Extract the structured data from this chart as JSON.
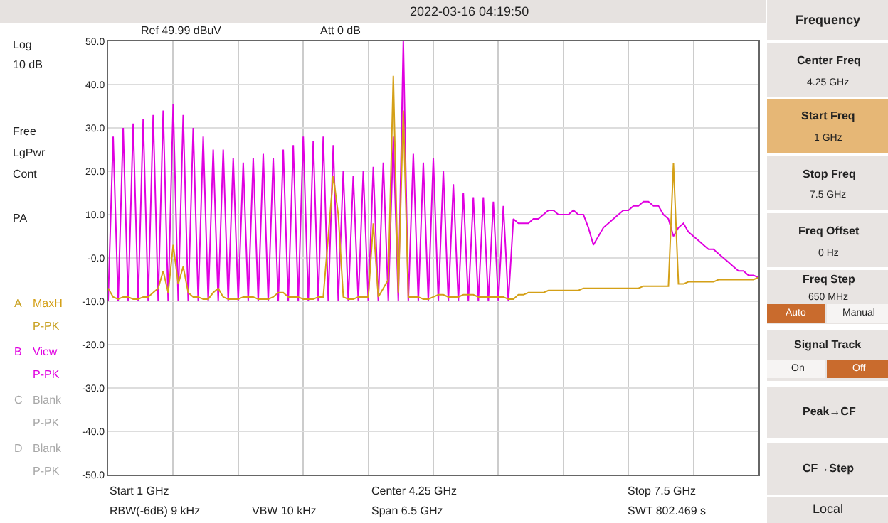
{
  "chart_data": {
    "type": "line",
    "categories": [
      null,
      null,
      null,
      null,
      null,
      null,
      null,
      null,
      null,
      null,
      null,
      null,
      null,
      null,
      null,
      null,
      null,
      null,
      null,
      null,
      null,
      null,
      null,
      null,
      null,
      null,
      null,
      null,
      null,
      null,
      null,
      null,
      null,
      null,
      null,
      null,
      null,
      null,
      null,
      null,
      null,
      null,
      null,
      null,
      null,
      null,
      null,
      null,
      null,
      null,
      null,
      null,
      null,
      null,
      null,
      null,
      null,
      null,
      null,
      null,
      null,
      null,
      null,
      null,
      null,
      null,
      null,
      null,
      null,
      null,
      null,
      null,
      null,
      null,
      null,
      null,
      null,
      null,
      null,
      null,
      null,
      null,
      null,
      null,
      null,
      null,
      null,
      null,
      null,
      null,
      null,
      null,
      null,
      null,
      null,
      null,
      null,
      null,
      null,
      null,
      null,
      null,
      null,
      null,
      null,
      null,
      null,
      null,
      null,
      null,
      null,
      null,
      null,
      null,
      null,
      null,
      null,
      null,
      null,
      null,
      null,
      null,
      null,
      null,
      null,
      null,
      null,
      null,
      null,
      null,
      null
    ],
    "ylim": [
      -50,
      50
    ],
    "yticks": [
      {
        "value": 50,
        "label": "50.0"
      },
      {
        "value": 40,
        "label": "40.0"
      },
      {
        "value": 30,
        "label": "30.0"
      },
      {
        "value": 20,
        "label": "20.0"
      },
      {
        "value": 10,
        "label": "10.0"
      },
      {
        "value": 0,
        "label": "-0.0"
      },
      {
        "value": -10,
        "label": "-10.0"
      },
      {
        "value": -20,
        "label": "-20.0"
      },
      {
        "value": -30,
        "label": "-30.0"
      },
      {
        "value": -40,
        "label": "-40.0"
      },
      {
        "value": -50,
        "label": "-50.0"
      }
    ],
    "tick_labels": "y",
    "grid": true,
    "legend": false,
    "series": [
      {
        "name": "View",
        "color": "#e000e0",
        "values": [
          -10,
          28,
          -10,
          30,
          -10,
          31,
          -10,
          32,
          -10,
          33,
          -10,
          34,
          -10,
          35.5,
          -10,
          33,
          -10,
          30,
          -10,
          28,
          -10,
          25,
          -10,
          25,
          -10,
          23,
          -10,
          22,
          -10,
          23,
          -10,
          24,
          -10,
          23,
          -10,
          25,
          -10,
          26,
          -10,
          28,
          -10,
          27,
          -10,
          28,
          -10,
          26,
          -10,
          20,
          -10,
          19,
          -10,
          20,
          -10,
          21,
          -10,
          22,
          -10,
          28,
          -10,
          50,
          -10,
          24,
          -10,
          22,
          -10,
          23,
          -10,
          20,
          -10,
          17,
          -10,
          15,
          -10,
          14,
          -10,
          14,
          -10,
          13,
          -10,
          12,
          -10,
          9,
          8,
          8,
          8,
          9,
          9,
          10,
          11,
          11,
          10,
          10,
          10,
          11,
          10,
          10,
          7,
          3,
          5,
          7,
          8,
          9,
          10,
          11,
          11,
          12,
          12,
          13,
          13,
          12,
          12,
          10,
          9,
          5,
          7,
          8,
          6,
          5,
          4,
          3,
          2,
          2,
          1,
          0,
          -1,
          -2,
          -3,
          -3,
          -4,
          -4,
          -4.5
        ]
      },
      {
        "name": "MaxH",
        "color": "#d4a017",
        "values": [
          -7,
          -9,
          -9.5,
          -9,
          -9,
          -9.5,
          -9.5,
          -9,
          -9,
          -8,
          -7,
          -3,
          -8,
          3,
          -6,
          -2,
          -8,
          -9,
          -9,
          -9.5,
          -9.5,
          -8,
          -7,
          -9,
          -9.5,
          -9.5,
          -9.5,
          -9,
          -9,
          -9,
          -9.5,
          -9.5,
          -9.5,
          -9,
          -8,
          -8,
          -9,
          -9,
          -9,
          -9.5,
          -9.5,
          -9.5,
          -9,
          -9,
          5,
          19,
          10,
          -9,
          -9.5,
          -9.5,
          -9,
          -9,
          -9,
          8,
          -9,
          -7,
          -5,
          42,
          -8,
          34,
          -9,
          -9,
          -9,
          -9.5,
          -9.5,
          -9,
          -8.5,
          -8.5,
          -9,
          -9,
          -9,
          -8.5,
          -8.5,
          -8.5,
          -9,
          -9,
          -9,
          -9,
          -9,
          -9,
          -9.5,
          -9.5,
          -8.5,
          -8.5,
          -8,
          -8,
          -8,
          -8,
          -7.5,
          -7.5,
          -7.5,
          -7.5,
          -7.5,
          -7.5,
          -7.5,
          -7,
          -7,
          -7,
          -7,
          -7,
          -7,
          -7,
          -7,
          -7,
          -7,
          -7,
          -7,
          -6.5,
          -6.5,
          -6.5,
          -6.5,
          -6.5,
          -6.5,
          21.8,
          -6,
          -6,
          -5.5,
          -5.5,
          -5.5,
          -5.5,
          -5.5,
          -5.5,
          -5,
          -5,
          -5,
          -5,
          -5,
          -5,
          -5,
          -5,
          -4.5
        ]
      }
    ],
    "annotations": [
      "2022-03-16 04:19:50",
      "Ref 49.99 dBuV",
      "Att 0 dB",
      "Log",
      "10 dB",
      "Free",
      "LgPwr",
      "Cont",
      "PA",
      "A",
      "P-PK",
      "B",
      "P-PK",
      "C",
      "Blank",
      "P-PK",
      "D",
      "Blank",
      "P-PK",
      "Start 1 GHz",
      "Center 4.25 GHz",
      "Stop 7.5 GHz",
      "RBW(-6dB) 9 kHz",
      "VBW 10 kHz",
      "Span 6.5 GHz",
      "SWT 802.469 s",
      "Frequency",
      "Center Freq",
      "4.25 GHz",
      "Start Freq",
      "1 GHz",
      "Stop Freq",
      "7.5 GHz",
      "Freq Offset",
      "0 Hz",
      "Freq Step",
      "650 MHz",
      "Auto",
      "Manual",
      "Signal Track",
      "On",
      "Off",
      "Peak→CF",
      "CF→Step",
      "Local"
    ]
  }
}
